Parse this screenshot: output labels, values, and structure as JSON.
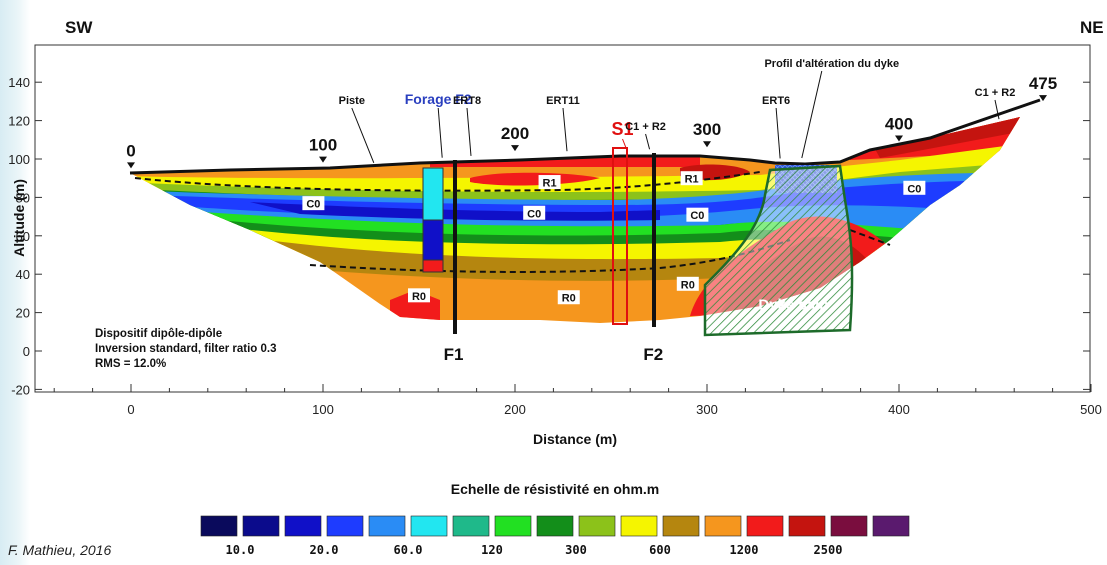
{
  "chart_data": {
    "type": "heatmap",
    "title": "",
    "xlabel": "Distance (m)",
    "ylabel": "Altitude (m)",
    "xlim": [
      -50,
      500
    ],
    "ylim": [
      -20,
      160
    ],
    "x_ticks": [
      0,
      100,
      200,
      300,
      400,
      500
    ],
    "y_ticks": [
      -20,
      0,
      20,
      40,
      60,
      80,
      100,
      120,
      140
    ],
    "orientation": {
      "left": "SW",
      "right": "NE"
    },
    "profile_marks": [
      {
        "label": "0",
        "x": 0
      },
      {
        "label": "100",
        "x": 100
      },
      {
        "label": "200",
        "x": 200
      },
      {
        "label": "300",
        "x": 300
      },
      {
        "label": "400",
        "x": 400
      },
      {
        "label": "475",
        "x": 475
      }
    ],
    "surface_topography": [
      {
        "x": 0,
        "y": 92
      },
      {
        "x": 50,
        "y": 93
      },
      {
        "x": 100,
        "y": 95
      },
      {
        "x": 150,
        "y": 98
      },
      {
        "x": 200,
        "y": 101
      },
      {
        "x": 250,
        "y": 103
      },
      {
        "x": 300,
        "y": 103
      },
      {
        "x": 330,
        "y": 99
      },
      {
        "x": 345,
        "y": 97
      },
      {
        "x": 370,
        "y": 98
      },
      {
        "x": 400,
        "y": 106
      },
      {
        "x": 430,
        "y": 112
      },
      {
        "x": 475,
        "y": 127
      }
    ],
    "annotations": [
      {
        "text": "Piste",
        "x": 115
      },
      {
        "text": "Forage F2",
        "x": 160
      },
      {
        "text": "ERT8",
        "x": 175
      },
      {
        "text": "ERT11",
        "x": 225
      },
      {
        "text": "S1",
        "x": 256
      },
      {
        "text": "C1 + R2",
        "x": 268
      },
      {
        "text": "ERT6",
        "x": 336
      },
      {
        "text": "Profil d'altération du dyke",
        "x": 365
      },
      {
        "text": "C1 + R2",
        "x": 450
      }
    ],
    "boreholes": [
      {
        "label": "F1",
        "x": 168,
        "top": 98,
        "bottom": 8
      },
      {
        "label": "F2",
        "x": 272,
        "top": 103,
        "bottom": 12
      }
    ],
    "zones": [
      {
        "label": "C0",
        "x": 95,
        "y": 77
      },
      {
        "label": "C0",
        "x": 210,
        "y": 72
      },
      {
        "label": "C0",
        "x": 295,
        "y": 71
      },
      {
        "label": "C0",
        "x": 408,
        "y": 85
      },
      {
        "label": "R1",
        "x": 218,
        "y": 88
      },
      {
        "label": "R1",
        "x": 292,
        "y": 90
      },
      {
        "label": "R0",
        "x": 150,
        "y": 29
      },
      {
        "label": "R0",
        "x": 228,
        "y": 28
      },
      {
        "label": "R0",
        "x": 290,
        "y": 35
      },
      {
        "label": "Dyke sain",
        "x": 345,
        "y": 25
      }
    ],
    "info_text": [
      "Dispositif dipôle-dipôle",
      "Inversion standard, filter ratio 0.3",
      "RMS = 12.0%"
    ],
    "colorbar": {
      "title": "Echelle de résistivité en ohm.m",
      "unit": "ohm.m",
      "colors": [
        "#0a0a5c",
        "#0b0b8c",
        "#1010c8",
        "#1e3cff",
        "#2a8cf5",
        "#22e6f0",
        "#1fb98a",
        "#22e022",
        "#138e1a",
        "#8cc21a",
        "#f5f500",
        "#b5860f",
        "#f5961e",
        "#f21b1b",
        "#c4140f",
        "#7a0d3e",
        "#5a1a6e"
      ],
      "tick_labels": [
        "10.0",
        "20.0",
        "60.0",
        "120",
        "300",
        "600",
        "1200",
        "2500"
      ]
    }
  },
  "credit": "F. Mathieu, 2016"
}
